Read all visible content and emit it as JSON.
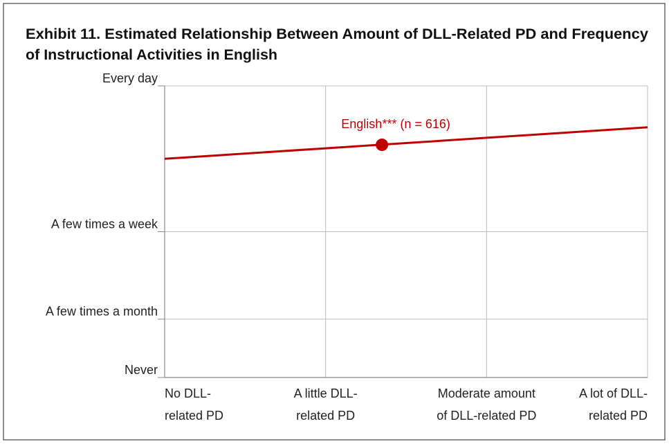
{
  "chart_data": {
    "type": "line",
    "title": "Exhibit 11. Estimated Relationship Between Amount of DLL-Related PD and Frequency\nof Instructional Activities in English",
    "x": [
      0,
      3
    ],
    "series": [
      {
        "name": "English*** (n = 616)",
        "color": "#c00000",
        "values": [
          3.75,
          4.29
        ]
      }
    ],
    "points": [
      {
        "x": 1.35,
        "y": 3.99
      }
    ],
    "xlim": [
      0,
      3
    ],
    "xticks": [
      {
        "value": 0,
        "label": "No DLL-\nrelated PD"
      },
      {
        "value": 1,
        "label": "A little DLL-\nrelated PD"
      },
      {
        "value": 2,
        "label": "Moderate amount\nof DLL-related PD"
      },
      {
        "value": 3,
        "label": "A lot of DLL-\nrelated PD"
      }
    ],
    "ylim": [
      0,
      5
    ],
    "yticks": [
      {
        "value": 0,
        "label": "Never"
      },
      {
        "value": 1,
        "label": "A few times a month"
      },
      {
        "value": 2.5,
        "label": "A few times a week"
      },
      {
        "value": 5,
        "label": "Every day"
      }
    ],
    "grid": true
  }
}
